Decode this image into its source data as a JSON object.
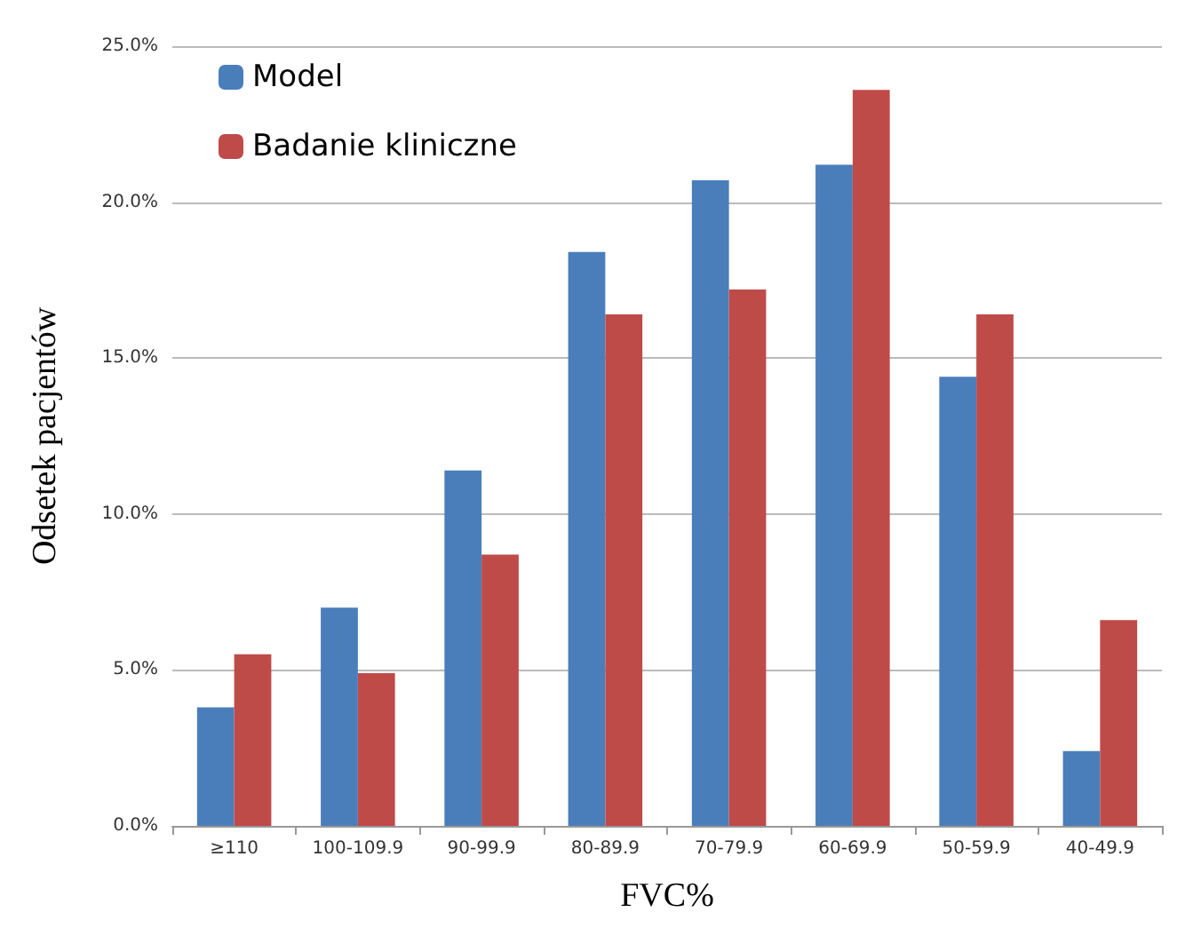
{
  "chart_data": {
    "type": "bar",
    "xlabel": "FVC%",
    "ylabel": "Odsetek pacjentów",
    "categories": [
      "≥110",
      "100-109.9",
      "90-99.9",
      "80-89.9",
      "70-79.9",
      "60-69.9",
      "50-59.9",
      "40-49.9"
    ],
    "series": [
      {
        "name": "Model",
        "color": "#4a7ebb",
        "values": [
          3.8,
          7.0,
          11.4,
          18.4,
          20.7,
          21.2,
          14.4,
          2.4
        ]
      },
      {
        "name": "Badanie kliniczne",
        "color": "#be4b48",
        "values": [
          5.5,
          4.9,
          8.7,
          16.4,
          17.2,
          23.6,
          16.4,
          6.6
        ]
      }
    ],
    "ylim": [
      0,
      25
    ],
    "yticks": [
      {
        "value": 0,
        "label": "0.0%"
      },
      {
        "value": 5,
        "label": "5.0%"
      },
      {
        "value": 10,
        "label": "10.0%"
      },
      {
        "value": 15,
        "label": "15.0%"
      },
      {
        "value": 20,
        "label": "20.0%"
      },
      {
        "value": 25,
        "label": "25.0%"
      }
    ],
    "grid": "y",
    "legend": "top left"
  }
}
